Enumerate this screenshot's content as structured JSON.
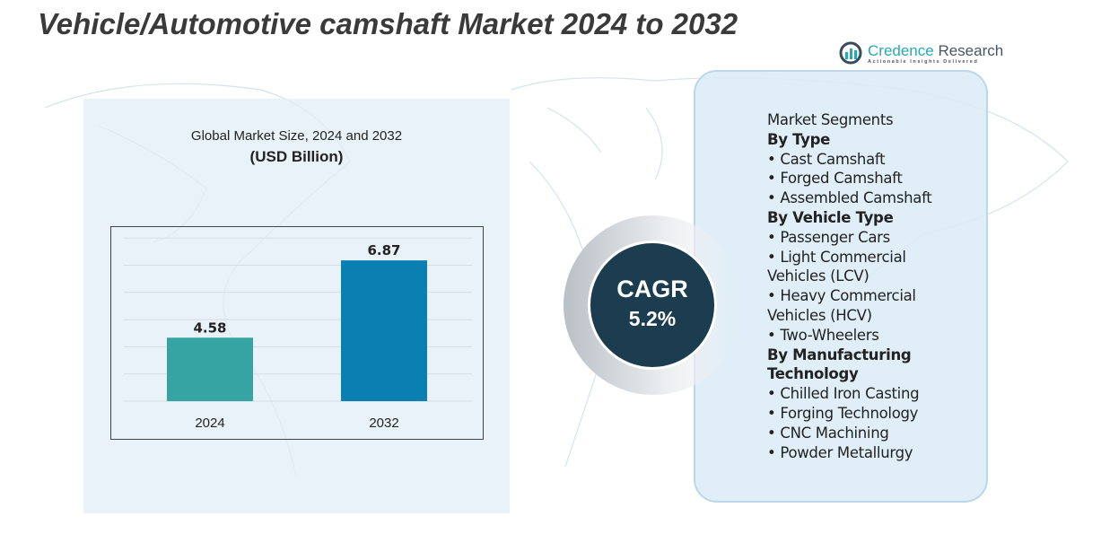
{
  "title": "Vehicle/Automotive camshaft Market 2024 to 2032",
  "logo": {
    "name_part1": "Credence",
    "name_part2": " Research",
    "tagline": "Actionable Insights Delivered"
  },
  "chart_data": {
    "type": "bar",
    "title": "Global Market Size, 2024 and 2032",
    "unit": "(USD Billion)",
    "categories": [
      "2024",
      "2032"
    ],
    "values": [
      4.58,
      6.87
    ],
    "value_labels": [
      "4.58",
      "6.87"
    ],
    "colors": [
      "#36a4a2",
      "#0a80b2"
    ],
    "grid": true,
    "ylim": [
      2.7,
      7.75
    ]
  },
  "cagr": {
    "label": "CAGR",
    "value": "5.2%"
  },
  "segments": {
    "heading": "Market Segments",
    "lines": [
      {
        "text": "By Type",
        "bold": true
      },
      {
        "text": "•  Cast Camshaft"
      },
      {
        "text": "•  Forged Camshaft"
      },
      {
        "text": "•  Assembled Camshaft"
      },
      {
        "text": "By Vehicle Type",
        "bold": true
      },
      {
        "text": "•  Passenger Cars"
      },
      {
        "text": "•  Light Commercial"
      },
      {
        "text": "Vehicles (LCV)"
      },
      {
        "text": "•   Heavy Commercial"
      },
      {
        "text": "Vehicles (HCV)"
      },
      {
        "text": "•  Two-Wheelers"
      },
      {
        "text": "By Manufacturing",
        "bold": true
      },
      {
        "text": "Technology",
        "bold": true
      },
      {
        "text": "•   Chilled Iron Casting"
      },
      {
        "text": "•  Forging Technology"
      },
      {
        "text": "•  CNC Machining"
      },
      {
        "text": "•  Powder Metallurgy"
      }
    ]
  }
}
